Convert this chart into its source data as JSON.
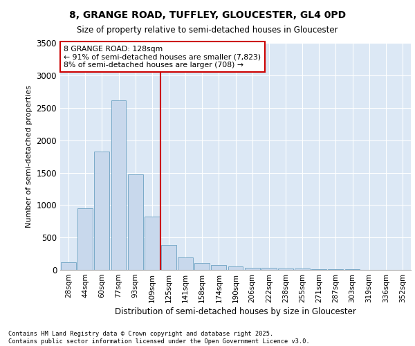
{
  "title_line1": "8, GRANGE ROAD, TUFFLEY, GLOUCESTER, GL4 0PD",
  "title_line2": "Size of property relative to semi-detached houses in Gloucester",
  "xlabel": "Distribution of semi-detached houses by size in Gloucester",
  "ylabel": "Number of semi-detached properties",
  "categories": [
    "28sqm",
    "44sqm",
    "60sqm",
    "77sqm",
    "93sqm",
    "109sqm",
    "125sqm",
    "141sqm",
    "158sqm",
    "174sqm",
    "190sqm",
    "206sqm",
    "222sqm",
    "238sqm",
    "255sqm",
    "271sqm",
    "287sqm",
    "303sqm",
    "319sqm",
    "336sqm",
    "352sqm"
  ],
  "values": [
    120,
    950,
    1830,
    2620,
    1480,
    820,
    380,
    190,
    110,
    75,
    50,
    35,
    30,
    20,
    20,
    15,
    10,
    10,
    5,
    5,
    5
  ],
  "bar_color": "#c8d8ec",
  "bar_edge_color": "#7aaac8",
  "grid_color": "#c8d8ec",
  "bg_color": "#dce8f5",
  "vline_color": "#cc0000",
  "annotation_text": "8 GRANGE ROAD: 128sqm\n← 91% of semi-detached houses are smaller (7,823)\n8% of semi-detached houses are larger (708) →",
  "annotation_box_color": "#cc0000",
  "ylim": [
    0,
    3500
  ],
  "yticks": [
    0,
    500,
    1000,
    1500,
    2000,
    2500,
    3000,
    3500
  ],
  "footer_line1": "Contains HM Land Registry data © Crown copyright and database right 2025.",
  "footer_line2": "Contains public sector information licensed under the Open Government Licence v3.0."
}
